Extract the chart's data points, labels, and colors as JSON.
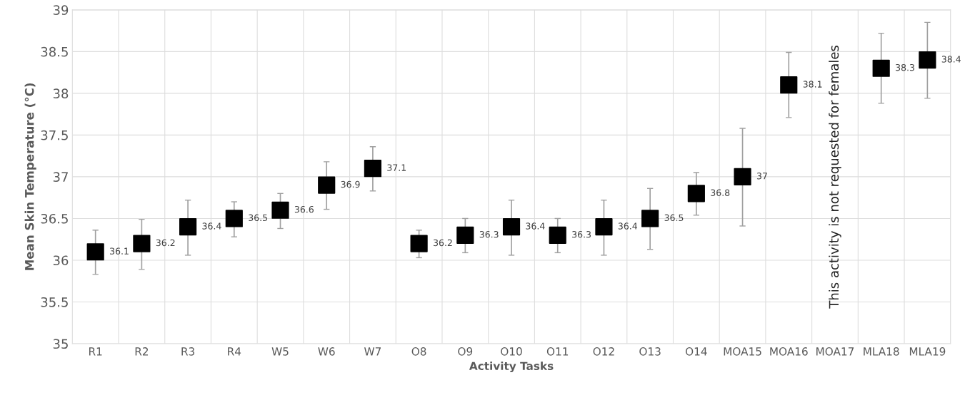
{
  "chart_data": {
    "type": "scatter",
    "xlabel": "Activity Tasks",
    "ylabel": "Mean Skin Temperature (°C)",
    "categories": [
      "R1",
      "R2",
      "R3",
      "R4",
      "W5",
      "W6",
      "W7",
      "O8",
      "O9",
      "O10",
      "O11",
      "O12",
      "O13",
      "O14",
      "MOA15",
      "MOA16",
      "MOA17",
      "MLA18",
      "MLA19"
    ],
    "series": [
      {
        "color": "#000000",
        "values": [
          36.1,
          36.2,
          36.4,
          36.5,
          36.6,
          36.9,
          37.1,
          36.2,
          36.3,
          36.4,
          36.3,
          36.4,
          36.5,
          36.8,
          37,
          38.1,
          null,
          38.3,
          38.4
        ],
        "errors": [
          [
            35.83,
            36.36
          ],
          [
            35.89,
            36.49
          ],
          [
            36.06,
            36.72
          ],
          [
            36.28,
            36.7
          ],
          [
            36.38,
            36.8
          ],
          [
            36.61,
            37.18
          ],
          [
            36.83,
            37.36
          ],
          [
            36.03,
            36.36
          ],
          [
            36.09,
            36.5
          ],
          [
            36.06,
            36.72
          ],
          [
            36.09,
            36.5
          ],
          [
            36.06,
            36.72
          ],
          [
            36.13,
            36.86
          ],
          [
            36.54,
            37.05
          ],
          [
            36.41,
            37.58
          ],
          [
            37.71,
            38.49
          ],
          null,
          [
            37.88,
            38.72
          ],
          [
            37.94,
            38.85
          ]
        ]
      }
    ],
    "ylim": [
      35,
      39
    ],
    "yticks": [
      35,
      35.5,
      36,
      36.5,
      37,
      37.5,
      38,
      38.5,
      39
    ],
    "grid": true,
    "marker": "square",
    "data_labels": true,
    "annotations": [
      "This activity is not requested for females"
    ]
  }
}
